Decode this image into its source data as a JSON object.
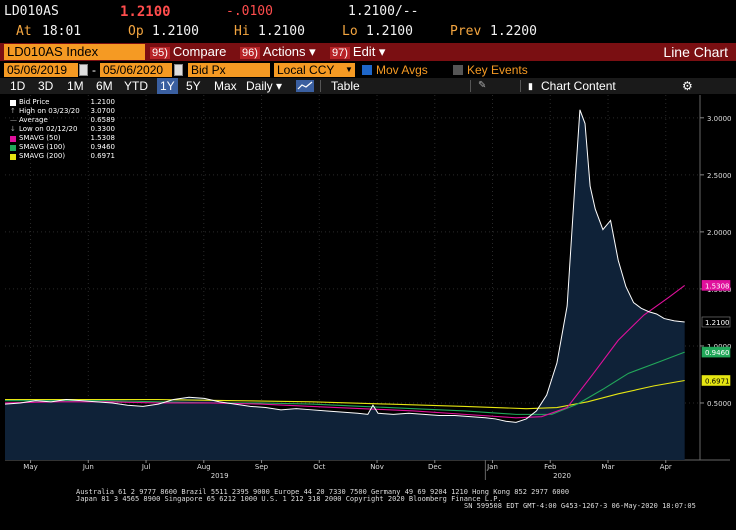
{
  "quote": {
    "ticker": "LD010AS",
    "last": "1.2100",
    "change": "-.0100",
    "bidask": "1.2100/--",
    "at_label": "At",
    "time": "18:01",
    "op_label": "Op",
    "open": "1.2100",
    "hi_label": "Hi",
    "high": "1.2100",
    "lo_label": "Lo",
    "low": "1.2100",
    "prev_label": "Prev",
    "prev": "1.2200"
  },
  "toolbar": {
    "security": "LD010AS Index",
    "compare_num": "95)",
    "compare": "Compare",
    "actions_num": "96)",
    "actions": "Actions ▾",
    "edit_num": "97)",
    "edit": "Edit ▾",
    "chart_title": "Line Chart"
  },
  "params": {
    "start_date": "05/06/2019",
    "end_date": "05/06/2020",
    "dash": "-",
    "field": "Bid Px",
    "currency": "Local CCY",
    "mov_avgs": "Mov Avgs",
    "key_events": "Key Events"
  },
  "periods": {
    "items": [
      "1D",
      "3D",
      "1M",
      "6M",
      "YTD",
      "1Y",
      "5Y",
      "Max"
    ],
    "selected": "1Y",
    "frequency": "Daily ▾",
    "table": "Table",
    "chart_content": "Chart Content"
  },
  "legend": [
    {
      "name": "Bid Price",
      "value": "1.2100",
      "color": "#ffffff"
    },
    {
      "name": "High on 03/23/20",
      "value": "3.0700",
      "color": "none",
      "icon": "high-marker"
    },
    {
      "name": "Average",
      "value": "0.6589",
      "color": "none",
      "icon": "average-marker"
    },
    {
      "name": "Low on 02/12/20",
      "value": "0.3300",
      "color": "none",
      "icon": "low-marker"
    },
    {
      "name": "SMAVG (50)",
      "value": "1.5308",
      "color": "#e0109c"
    },
    {
      "name": "SMAVG (100)",
      "value": "0.9460",
      "color": "#22a85a"
    },
    {
      "name": "SMAVG (200)",
      "value": "0.6971",
      "color": "#e6e612"
    }
  ],
  "chart_data": {
    "type": "area",
    "x_labels": [
      "May",
      "Jun",
      "Jul",
      "Aug",
      "Sep",
      "Oct",
      "Nov",
      "Dec",
      "Jan",
      "Feb",
      "Mar",
      "Apr"
    ],
    "year_labels": [
      "2019",
      "2020"
    ],
    "ylim": [
      0,
      3.2
    ],
    "y_ticks": [
      "0.5000",
      "1.0000",
      "1.5000",
      "2.0000",
      "2.5000",
      "3.0000"
    ],
    "last_value_tags": [
      {
        "value": "1.5308",
        "color": "#e0109c",
        "text_color": "#ffffff"
      },
      {
        "value": "1.2100",
        "color": "#000000",
        "text_color": "#ffffff"
      },
      {
        "value": "0.9460",
        "color": "#22a85a",
        "text_color": "#ffffff"
      },
      {
        "value": "0.6971",
        "color": "#e6e612",
        "text_color": "#000000"
      }
    ],
    "series": [
      {
        "name": "Bid Price",
        "color": "#ffffff",
        "points": [
          [
            0,
            0.49
          ],
          [
            0.3,
            0.5
          ],
          [
            0.6,
            0.52
          ],
          [
            0.9,
            0.51
          ],
          [
            1.2,
            0.53
          ],
          [
            1.5,
            0.52
          ],
          [
            1.8,
            0.51
          ],
          [
            2.1,
            0.5
          ],
          [
            2.4,
            0.48
          ],
          [
            2.7,
            0.47
          ],
          [
            3.0,
            0.49
          ],
          [
            3.3,
            0.53
          ],
          [
            3.6,
            0.55
          ],
          [
            3.9,
            0.54
          ],
          [
            4.2,
            0.51
          ],
          [
            4.5,
            0.49
          ],
          [
            4.8,
            0.47
          ],
          [
            5.1,
            0.46
          ],
          [
            5.4,
            0.44
          ],
          [
            5.7,
            0.45
          ],
          [
            6.0,
            0.44
          ],
          [
            6.3,
            0.43
          ],
          [
            6.6,
            0.42
          ],
          [
            6.9,
            0.41
          ],
          [
            7.1,
            0.4
          ],
          [
            7.2,
            0.48
          ],
          [
            7.3,
            0.41
          ],
          [
            7.6,
            0.4
          ],
          [
            7.9,
            0.41
          ],
          [
            8.2,
            0.4
          ],
          [
            8.5,
            0.39
          ],
          [
            8.8,
            0.39
          ],
          [
            9.1,
            0.38
          ],
          [
            9.4,
            0.37
          ],
          [
            9.6,
            0.36
          ],
          [
            9.8,
            0.34
          ],
          [
            10.0,
            0.33
          ],
          [
            10.2,
            0.36
          ],
          [
            10.4,
            0.43
          ],
          [
            10.6,
            0.57
          ],
          [
            10.8,
            0.85
          ],
          [
            11.0,
            1.35
          ],
          [
            11.15,
            2.4
          ],
          [
            11.25,
            3.07
          ],
          [
            11.35,
            2.95
          ],
          [
            11.45,
            2.4
          ],
          [
            11.55,
            2.2
          ],
          [
            11.7,
            2.02
          ],
          [
            11.85,
            2.1
          ],
          [
            12.0,
            1.75
          ],
          [
            12.15,
            1.52
          ],
          [
            12.3,
            1.38
          ],
          [
            12.45,
            1.33
          ],
          [
            12.6,
            1.3
          ],
          [
            12.75,
            1.28
          ],
          [
            12.9,
            1.24
          ],
          [
            13.1,
            1.22
          ],
          [
            13.3,
            1.21
          ]
        ]
      },
      {
        "name": "SMAVG (50)",
        "color": "#e0109c",
        "points": [
          [
            0,
            0.5
          ],
          [
            1.0,
            0.51
          ],
          [
            2.0,
            0.51
          ],
          [
            3.0,
            0.5
          ],
          [
            4.0,
            0.5
          ],
          [
            5.0,
            0.49
          ],
          [
            6.0,
            0.47
          ],
          [
            7.0,
            0.45
          ],
          [
            8.0,
            0.43
          ],
          [
            9.0,
            0.4
          ],
          [
            10.0,
            0.37
          ],
          [
            10.5,
            0.38
          ],
          [
            11.0,
            0.46
          ],
          [
            11.5,
            0.75
          ],
          [
            12.0,
            1.05
          ],
          [
            12.5,
            1.27
          ],
          [
            13.0,
            1.43
          ],
          [
            13.3,
            1.53
          ]
        ]
      },
      {
        "name": "SMAVG (100)",
        "color": "#22a85a",
        "points": [
          [
            0,
            0.52
          ],
          [
            1.0,
            0.52
          ],
          [
            2.0,
            0.52
          ],
          [
            3.0,
            0.51
          ],
          [
            4.0,
            0.5
          ],
          [
            5.0,
            0.5
          ],
          [
            6.0,
            0.49
          ],
          [
            7.0,
            0.47
          ],
          [
            8.0,
            0.45
          ],
          [
            9.0,
            0.43
          ],
          [
            10.0,
            0.4
          ],
          [
            10.7,
            0.4
          ],
          [
            11.2,
            0.49
          ],
          [
            11.7,
            0.62
          ],
          [
            12.2,
            0.76
          ],
          [
            12.8,
            0.86
          ],
          [
            13.3,
            0.946
          ]
        ]
      },
      {
        "name": "SMAVG (200)",
        "color": "#e6e612",
        "points": [
          [
            0,
            0.53
          ],
          [
            1.5,
            0.53
          ],
          [
            3.0,
            0.53
          ],
          [
            4.5,
            0.52
          ],
          [
            6.0,
            0.51
          ],
          [
            7.5,
            0.49
          ],
          [
            9.0,
            0.47
          ],
          [
            10.2,
            0.45
          ],
          [
            10.8,
            0.46
          ],
          [
            11.4,
            0.51
          ],
          [
            12.0,
            0.58
          ],
          [
            12.7,
            0.65
          ],
          [
            13.3,
            0.697
          ]
        ]
      }
    ]
  },
  "footer": {
    "line1": "Australia 61 2 9777 8600 Brazil 5511 2395 9000 Europe 44 20 7330 7500 Germany 49 69 9204 1210 Hong Kong 852 2977 6000",
    "line2": "Japan 81 3 4565 8900       Singapore 65 6212 1000       U.S. 1 212 318 2000             Copyright 2020 Bloomberg Finance L.P.",
    "line3": "SN 599508 EDT  GMT-4:00 G453-1267-3 06-May-2020 18:07:05"
  },
  "colors": {
    "toolbar_bg": "#7a0f12",
    "accent_orange": "#f59a23",
    "area_fill": "#0f2238"
  }
}
